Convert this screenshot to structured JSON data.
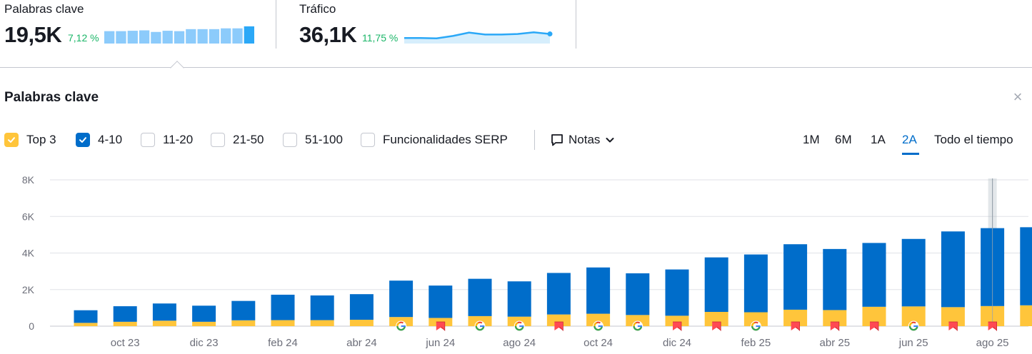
{
  "metrics": {
    "keywords": {
      "label": "Palabras clave",
      "value": "19,5K",
      "change": "7,12 %",
      "spark_bars": [
        0.62,
        0.62,
        0.64,
        0.66,
        0.58,
        0.64,
        0.62,
        0.72,
        0.72,
        0.72,
        0.76,
        0.76,
        0.86
      ],
      "color": "#8ccbfb",
      "highlight_color": "#2ba8f7"
    },
    "traffic": {
      "label": "Tráfico",
      "value": "36,1K",
      "change": "11,75 %",
      "spark_line": [
        0.28,
        0.28,
        0.26,
        0.38,
        0.55,
        0.45,
        0.45,
        0.48,
        0.56,
        0.48
      ],
      "line_color": "#2ba8f7",
      "fill_color": "#d6eefc"
    },
    "change_color": "#1bb668"
  },
  "panel": {
    "title": "Palabras clave",
    "close_icon": "×"
  },
  "filters": [
    {
      "label": "Top 3",
      "checked": true,
      "color": "#ffc53b"
    },
    {
      "label": "4-10",
      "checked": true,
      "color": "#006dca"
    },
    {
      "label": "11-20",
      "checked": false
    },
    {
      "label": "21-50",
      "checked": false
    },
    {
      "label": "51-100",
      "checked": false
    },
    {
      "label": "Funcionalidades SERP",
      "checked": false
    }
  ],
  "notes": {
    "label": "Notas"
  },
  "periods": [
    {
      "label": "1M",
      "active": false
    },
    {
      "label": "6M",
      "active": false
    },
    {
      "label": "1A",
      "active": false
    },
    {
      "label": "2A",
      "active": true
    },
    {
      "label": "Todo el tiempo",
      "active": false
    }
  ],
  "chart_data": {
    "type": "bar",
    "stacked": true,
    "ylim": [
      0,
      8000
    ],
    "yticks": [
      0,
      2000,
      4000,
      6000,
      8000
    ],
    "ytick_labels": [
      "0",
      "2K",
      "4K",
      "6K",
      "8K"
    ],
    "grid": true,
    "categories": [
      "sep 23",
      "oct 23",
      "nov 23",
      "dic 23",
      "ene 24",
      "feb 24",
      "mar 24",
      "abr 24",
      "may 24",
      "jun 24",
      "jul 24",
      "ago 24",
      "sep 24",
      "oct 24",
      "nov 24",
      "dic 24",
      "ene 25",
      "feb 25",
      "mar 25",
      "abr 25",
      "may 25",
      "jun 25",
      "jul 25",
      "ago 25",
      "sep 25"
    ],
    "xtick_labels": [
      "oct 23",
      "dic 23",
      "feb 24",
      "abr 24",
      "jun 24",
      "ago 24",
      "oct 24",
      "dic 24",
      "feb 25",
      "abr 25",
      "jun 25",
      "ago 25"
    ],
    "series": [
      {
        "name": "Top 3",
        "color": "#ffc53b",
        "values": [
          180,
          240,
          300,
          240,
          320,
          330,
          330,
          350,
          500,
          450,
          550,
          520,
          640,
          680,
          610,
          570,
          780,
          760,
          900,
          880,
          1060,
          1080,
          1040,
          1100,
          1140
        ]
      },
      {
        "name": "4-10",
        "color": "#006dca",
        "values": [
          690,
          850,
          940,
          880,
          1060,
          1390,
          1350,
          1400,
          1990,
          1770,
          2040,
          1930,
          2270,
          2530,
          2280,
          2530,
          2980,
          3160,
          3580,
          3340,
          3490,
          3690,
          4140,
          4260,
          4270
        ]
      }
    ],
    "markers": [
      "",
      "",
      "",
      "",
      "",
      "",
      "",
      "",
      "google",
      "flag",
      "google",
      "google",
      "flag",
      "google",
      "google",
      "flag",
      "flag",
      "google",
      "flag",
      "flag",
      "flag",
      "google",
      "flag",
      "flag",
      ""
    ],
    "hover_index": 23
  }
}
